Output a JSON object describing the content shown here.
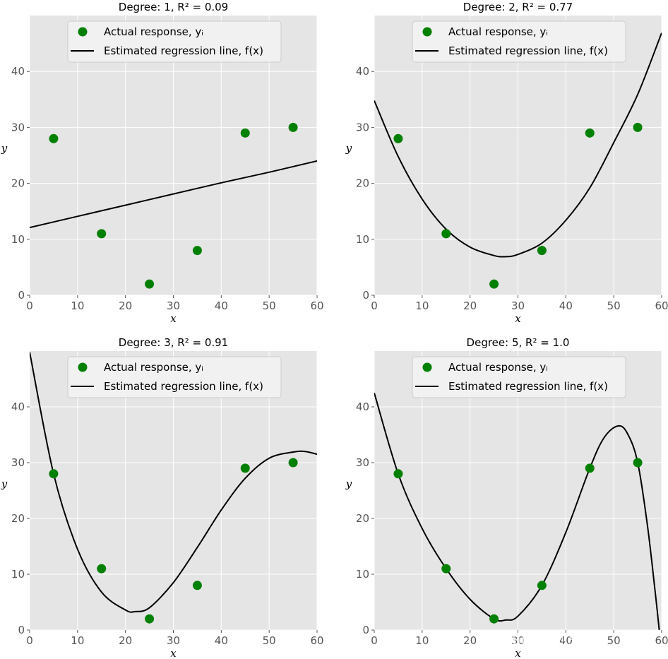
{
  "chart_data": [
    {
      "type": "scatter+line",
      "title": "Degree: 1, R² = 0.09",
      "degree": 1,
      "r_squared": 0.09,
      "xlabel": "x",
      "ylabel": "y",
      "xlim": [
        0,
        60
      ],
      "ylim": [
        0,
        50
      ],
      "xticks": [
        0,
        10,
        20,
        30,
        40,
        50,
        60
      ],
      "yticks": [
        0,
        10,
        20,
        30,
        40
      ],
      "grid": true,
      "legend": [
        "Actual response, yᵢ",
        "Estimated regression line, f(x)"
      ],
      "legend_position": "top-center",
      "points": {
        "x": [
          5,
          15,
          25,
          35,
          45,
          55
        ],
        "y": [
          28,
          11,
          2,
          8,
          29,
          30
        ]
      },
      "curve": {
        "x": [
          0,
          10,
          20,
          30,
          40,
          50,
          60
        ],
        "y": [
          12.1,
          14.1,
          16.1,
          18.1,
          20.1,
          22.0,
          24.0
        ]
      }
    },
    {
      "type": "scatter+line",
      "title": "Degree: 2, R² = 0.77",
      "degree": 2,
      "r_squared": 0.77,
      "xlabel": "x",
      "ylabel": "y",
      "xlim": [
        0,
        60
      ],
      "ylim": [
        0,
        50
      ],
      "xticks": [
        0,
        10,
        20,
        30,
        40,
        50,
        60
      ],
      "yticks": [
        0,
        10,
        20,
        30,
        40
      ],
      "grid": true,
      "legend": [
        "Actual response, yᵢ",
        "Estimated regression line, f(x)"
      ],
      "legend_position": "top-center",
      "points": {
        "x": [
          5,
          15,
          25,
          35,
          45,
          55
        ],
        "y": [
          28,
          11,
          2,
          8,
          29,
          30
        ]
      },
      "curve": {
        "x": [
          0,
          5,
          10,
          15,
          20,
          25,
          27.5,
          30,
          35,
          40,
          45,
          50,
          55,
          60
        ],
        "y": [
          34.8,
          24.8,
          17.2,
          11.8,
          8.6,
          7.1,
          6.9,
          7.3,
          9.3,
          13.4,
          19.2,
          27.3,
          35.9,
          46.9
        ]
      }
    },
    {
      "type": "scatter+line",
      "title": "Degree: 3, R² = 0.91",
      "degree": 3,
      "r_squared": 0.91,
      "xlabel": "x",
      "ylabel": "y",
      "xlim": [
        0,
        60
      ],
      "ylim": [
        0,
        50
      ],
      "xticks": [
        0,
        10,
        20,
        30,
        40,
        50,
        60
      ],
      "yticks": [
        0,
        10,
        20,
        30,
        40
      ],
      "grid": true,
      "legend": [
        "Actual response, yᵢ",
        "Estimated regression line, f(x)"
      ],
      "legend_position": "top-center",
      "points": {
        "x": [
          5,
          15,
          25,
          35,
          45,
          55
        ],
        "y": [
          28,
          11,
          2,
          8,
          29,
          30
        ]
      },
      "curve": {
        "x": [
          0,
          5,
          10,
          15,
          20,
          22,
          25,
          30,
          35,
          40,
          45,
          50,
          55,
          57.5,
          60
        ],
        "y": [
          49.8,
          28.0,
          14.5,
          6.8,
          3.6,
          3.3,
          4.0,
          8.5,
          14.8,
          21.5,
          27.2,
          30.8,
          31.9,
          32.0,
          31.5
        ]
      }
    },
    {
      "type": "scatter+line",
      "title": "Degree: 5, R² = 1.0",
      "degree": 5,
      "r_squared": 1.0,
      "xlabel": "x",
      "ylabel": "y",
      "xlim": [
        0,
        60
      ],
      "ylim": [
        0,
        50
      ],
      "xticks": [
        0,
        10,
        20,
        30,
        40,
        50,
        60
      ],
      "yticks": [
        0,
        10,
        20,
        30,
        40
      ],
      "grid": true,
      "legend": [
        "Actual response, yᵢ",
        "Estimated regression line, f(x)"
      ],
      "legend_position": "top-center",
      "points": {
        "x": [
          5,
          15,
          25,
          35,
          45,
          55
        ],
        "y": [
          28,
          11,
          2,
          8,
          29,
          30
        ]
      },
      "curve": {
        "x": [
          0,
          5,
          10,
          15,
          20,
          25,
          27.5,
          30,
          35,
          40,
          45,
          48,
          51,
          53,
          55,
          57,
          58.5,
          59.5
        ],
        "y": [
          42.5,
          28.0,
          18.2,
          11.0,
          5.5,
          2.0,
          1.8,
          2.5,
          8.0,
          17.5,
          29.0,
          34.5,
          36.6,
          35.0,
          30.0,
          19.0,
          8.0,
          0.0
        ]
      }
    }
  ],
  "watermark": "雪球 · Tushare挖地兔"
}
